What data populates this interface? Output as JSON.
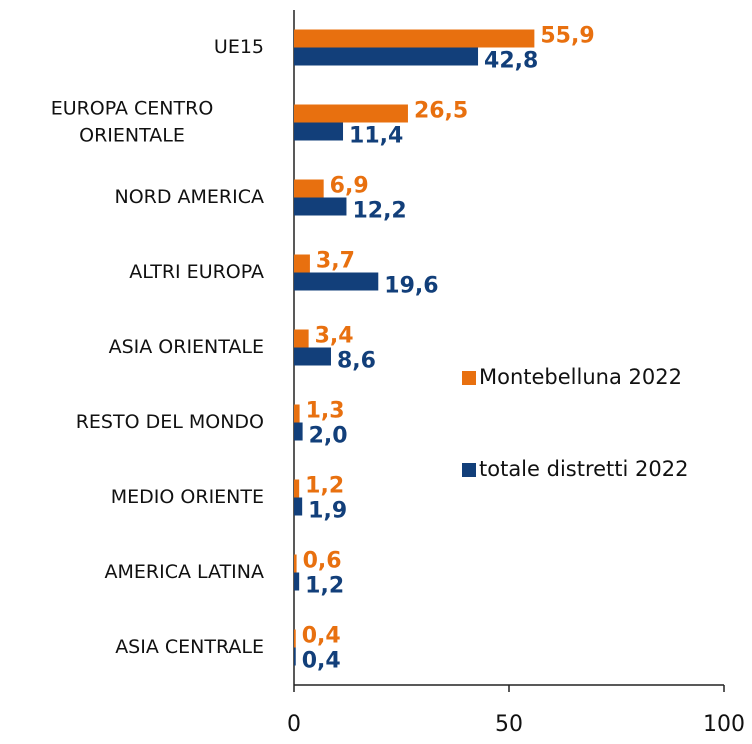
{
  "chart_data": {
    "type": "bar",
    "orientation": "horizontal",
    "categories": [
      "UE15",
      "EUROPA CENTRO ORIENTALE",
      "NORD AMERICA",
      "ALTRI EUROPA",
      "ASIA ORIENTALE",
      "RESTO DEL MONDO",
      "MEDIO ORIENTE",
      "AMERICA LATINA",
      "ASIA CENTRALE"
    ],
    "series": [
      {
        "name": "Montebelluna 2022",
        "color": "#e8700f",
        "values": [
          55.9,
          26.5,
          6.9,
          3.7,
          3.4,
          1.3,
          1.2,
          0.6,
          0.4
        ],
        "value_labels": [
          "55,9",
          "26,5",
          "6,9",
          "3,7",
          "3,4",
          "1,3",
          "1,2",
          "0,6",
          "0,4"
        ]
      },
      {
        "name": "totale distretti 2022",
        "color": "#123f7a",
        "values": [
          42.8,
          11.4,
          12.2,
          19.6,
          8.6,
          2.0,
          1.9,
          1.2,
          0.4
        ],
        "value_labels": [
          "42,8",
          "11,4",
          "12,2",
          "19,6",
          "8,6",
          "2,0",
          "1,9",
          "1,2",
          "0,4"
        ]
      }
    ],
    "xlim": [
      0,
      100
    ],
    "xticks": [
      0,
      50,
      100
    ],
    "grid": false,
    "legend": "right"
  }
}
